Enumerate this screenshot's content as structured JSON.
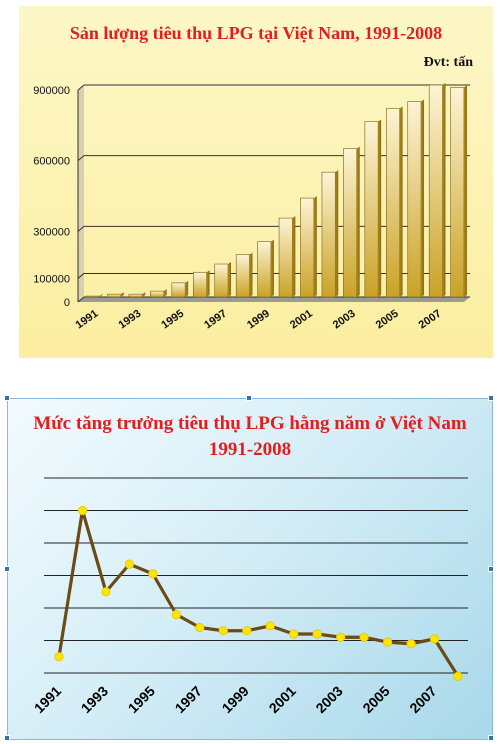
{
  "colors": {
    "title": "#e02020",
    "bar_light": "#fdf4d4",
    "bar_dark": "#c9a227",
    "line": "#6b4a16",
    "marker": "#ffe500",
    "grid": "#333333"
  },
  "chart_data": [
    {
      "type": "bar",
      "title": "Sản lượng tiêu thụ LPG tại Việt Nam, 1991-2008",
      "unit_label": "Đvt: tấn",
      "x": [
        1991,
        1992,
        1993,
        1994,
        1995,
        1996,
        1997,
        1998,
        1999,
        2000,
        2001,
        2002,
        2003,
        2004,
        2005,
        2006,
        2007,
        2008
      ],
      "x_tick_labels": [
        "1991",
        "1993",
        "1995",
        "1997",
        "1999",
        "2001",
        "2003",
        "2005",
        "2007"
      ],
      "values": [
        4000,
        12000,
        12000,
        25000,
        60000,
        105000,
        140000,
        180000,
        235000,
        335000,
        420000,
        530000,
        630000,
        745000,
        800000,
        830000,
        900000,
        890000
      ],
      "y_ticks": [
        0,
        100000,
        300000,
        600000,
        900000
      ],
      "ylim": [
        0,
        900000
      ],
      "grid": true
    },
    {
      "type": "line",
      "title": "Mức tăng trưởng tiêu thụ LPG hằng năm ở Việt Nam",
      "subtitle": "1991-2008",
      "x": [
        1991,
        1992,
        1993,
        1994,
        1995,
        1996,
        1997,
        1998,
        1999,
        2000,
        2001,
        2002,
        2003,
        2004,
        2005,
        2006,
        2007,
        2008
      ],
      "x_tick_labels": [
        "1991",
        "1993",
        "1995",
        "1997",
        "1999",
        "2001",
        "2003",
        "2005",
        "2007"
      ],
      "values": [
        0.5,
        5,
        2.5,
        3.35,
        3.05,
        1.8,
        1.4,
        1.3,
        1.3,
        1.45,
        1.2,
        1.2,
        1.1,
        1.1,
        0.95,
        0.9,
        1.05,
        -0.1
      ],
      "ylim": [
        0,
        6
      ],
      "y_ticks_labeled": false,
      "grid": true
    }
  ]
}
